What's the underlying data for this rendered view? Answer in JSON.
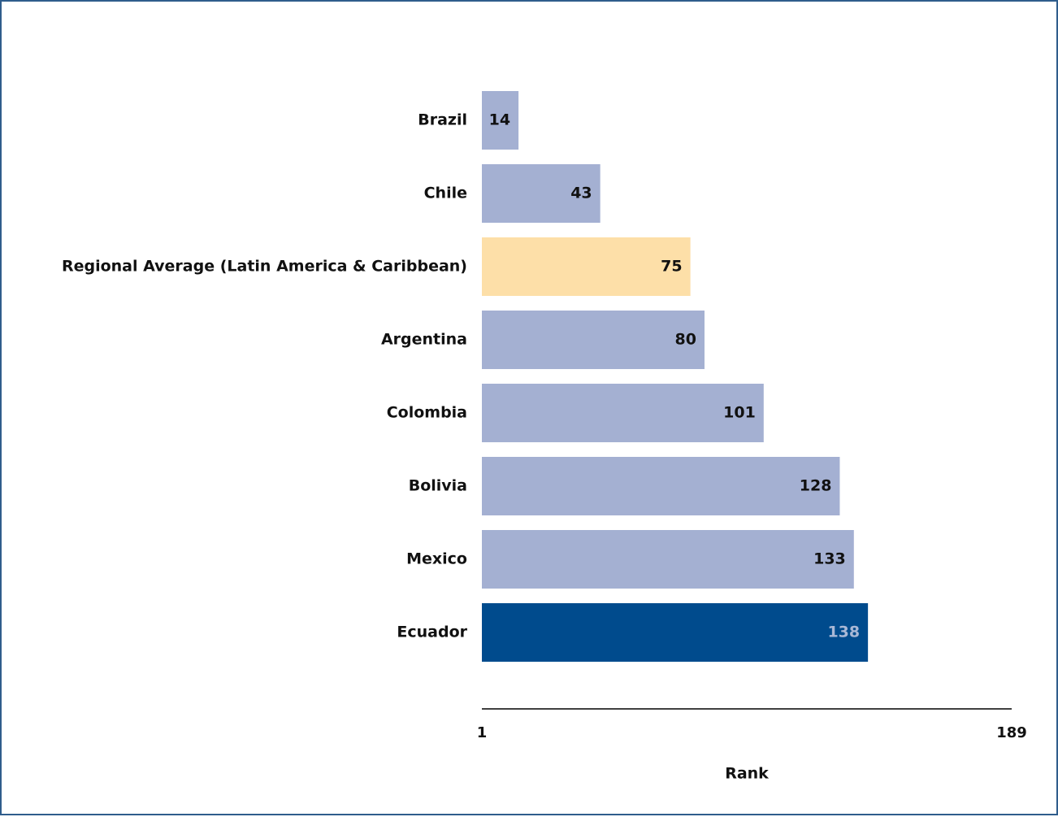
{
  "chart_data": {
    "type": "bar",
    "orientation": "horizontal",
    "categories": [
      "Brazil",
      "Chile",
      "Regional Average (Latin America & Caribbean)",
      "Argentina",
      "Colombia",
      "Bolivia",
      "Mexico",
      "Ecuador"
    ],
    "values": [
      14,
      43,
      75,
      80,
      101,
      128,
      133,
      138
    ],
    "value_labels": [
      "14",
      "43",
      "75",
      "80",
      "101",
      "128",
      "133",
      "138"
    ],
    "bar_colors": [
      "#a4b0d2",
      "#a4b0d2",
      "#fddfa8",
      "#a4b0d2",
      "#a4b0d2",
      "#a4b0d2",
      "#a4b0d2",
      "#004b8d"
    ],
    "label_colors": [
      "#111111",
      "#111111",
      "#111111",
      "#111111",
      "#111111",
      "#111111",
      "#111111",
      "#a9b8d6"
    ],
    "xlim": [
      1,
      189
    ],
    "tick_labels": [
      "1",
      "189"
    ],
    "xlabel": "Rank",
    "ylabel": "",
    "title": "",
    "grid": false,
    "legend": "none"
  },
  "colors": {
    "frame_border": "#2f5d8c",
    "country_bar": "#a4b0d2",
    "regional_bar": "#fddfa8",
    "highlight_bar": "#004b8d",
    "axis_line": "#000000"
  }
}
